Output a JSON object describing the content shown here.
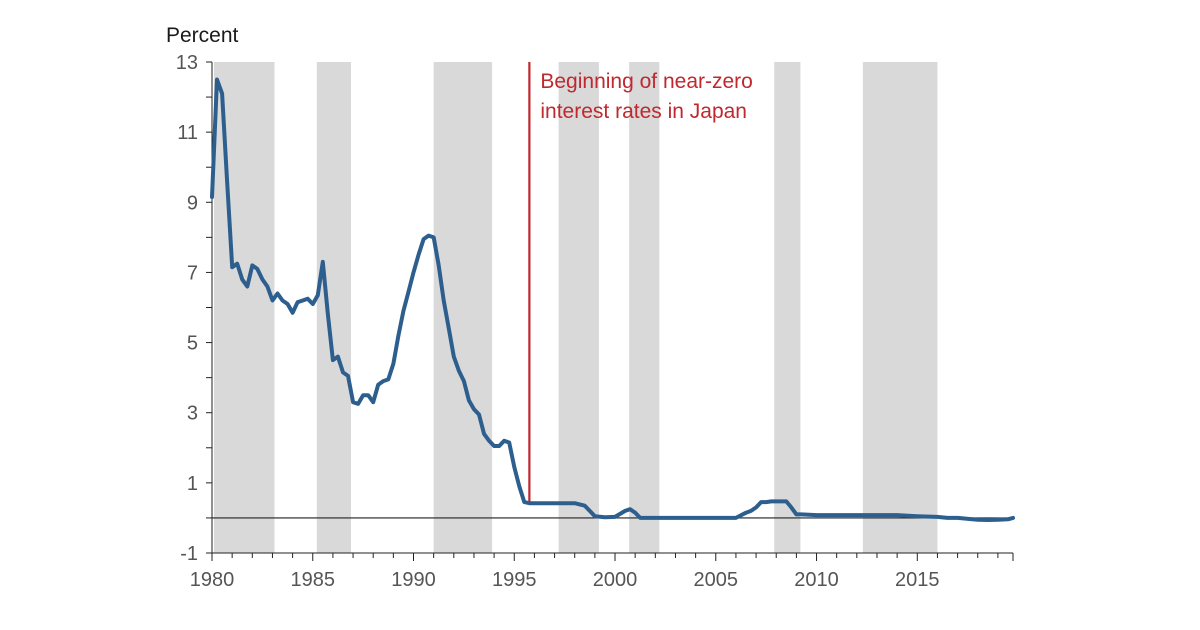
{
  "chart_data": {
    "type": "line",
    "ylabel": "Percent",
    "xlim": [
      1980,
      2019.75
    ],
    "ylim": [
      -1,
      13
    ],
    "yticks": [
      -1,
      1,
      3,
      5,
      7,
      9,
      11,
      13
    ],
    "xticks": [
      1980,
      1985,
      1990,
      1995,
      2000,
      2005,
      2010,
      2015
    ],
    "zero_line": true,
    "grid": false,
    "colors": {
      "line": "#2d5f8e",
      "shading": "#d9d9d9",
      "event_line": "#c0282f",
      "axis": "#222222"
    },
    "shaded_periods": [
      [
        1980.1,
        1983.1
      ],
      [
        1985.2,
        1986.9
      ],
      [
        1991.0,
        1993.9
      ],
      [
        1997.2,
        1999.2
      ],
      [
        2000.7,
        2002.2
      ],
      [
        2007.9,
        2009.2
      ],
      [
        2012.3,
        2016.0
      ]
    ],
    "event": {
      "x": 1995.75,
      "label_lines": [
        "Beginning of near-zero",
        "interest rates in Japan"
      ]
    },
    "series": [
      {
        "x": [
          1980.0,
          1980.25,
          1980.5,
          1980.75,
          1981.0,
          1981.25,
          1981.5,
          1981.75,
          1982.0,
          1982.25,
          1982.5,
          1982.75,
          1983.0,
          1983.25,
          1983.5,
          1983.75,
          1984.0,
          1984.25,
          1984.5,
          1984.75,
          1985.0,
          1985.25,
          1985.5,
          1985.75,
          1986.0,
          1986.25,
          1986.5,
          1986.75,
          1987.0,
          1987.25,
          1987.5,
          1987.75,
          1988.0,
          1988.25,
          1988.5,
          1988.75,
          1989.0,
          1989.25,
          1989.5,
          1989.75,
          1990.0,
          1990.25,
          1990.5,
          1990.75,
          1991.0,
          1991.25,
          1991.5,
          1991.75,
          1992.0,
          1992.25,
          1992.5,
          1992.75,
          1993.0,
          1993.25,
          1993.5,
          1993.75,
          1994.0,
          1994.25,
          1994.5,
          1994.75,
          1995.0,
          1995.25,
          1995.5,
          1995.75,
          1996.0,
          1997.0,
          1998.0,
          1998.5,
          1999.0,
          1999.5,
          2000.0,
          2000.5,
          2000.75,
          2001.0,
          2001.25,
          2002.0,
          2003.0,
          2004.0,
          2005.0,
          2006.0,
          2006.5,
          2006.75,
          2007.0,
          2007.25,
          2007.5,
          2007.75,
          2008.0,
          2008.5,
          2008.75,
          2009.0,
          2009.25,
          2010.0,
          2011.0,
          2012.0,
          2013.0,
          2014.0,
          2015.0,
          2016.0,
          2016.5,
          2017.0,
          2018.0,
          2018.5,
          2019.0,
          2019.5,
          2019.75
        ],
        "values": [
          9.15,
          12.5,
          12.1,
          9.6,
          7.15,
          7.25,
          6.8,
          6.6,
          7.2,
          7.1,
          6.8,
          6.6,
          6.2,
          6.4,
          6.2,
          6.1,
          5.85,
          6.15,
          6.2,
          6.25,
          6.1,
          6.35,
          7.3,
          5.8,
          4.5,
          4.6,
          4.15,
          4.05,
          3.3,
          3.25,
          3.5,
          3.5,
          3.3,
          3.8,
          3.9,
          3.95,
          4.4,
          5.2,
          5.9,
          6.45,
          7.0,
          7.5,
          7.95,
          8.05,
          8.0,
          7.2,
          6.2,
          5.4,
          4.6,
          4.2,
          3.9,
          3.35,
          3.1,
          2.95,
          2.4,
          2.2,
          2.05,
          2.05,
          2.2,
          2.15,
          1.45,
          0.9,
          0.45,
          0.42,
          0.42,
          0.42,
          0.42,
          0.35,
          0.05,
          0.02,
          0.03,
          0.2,
          0.25,
          0.15,
          0.0,
          0.0,
          0.0,
          0.0,
          0.0,
          0.0,
          0.15,
          0.2,
          0.3,
          0.45,
          0.45,
          0.47,
          0.47,
          0.47,
          0.3,
          0.1,
          0.1,
          0.08,
          0.08,
          0.08,
          0.08,
          0.08,
          0.05,
          0.03,
          0.0,
          0.0,
          -0.05,
          -0.06,
          -0.05,
          -0.04,
          0.0
        ]
      }
    ]
  }
}
